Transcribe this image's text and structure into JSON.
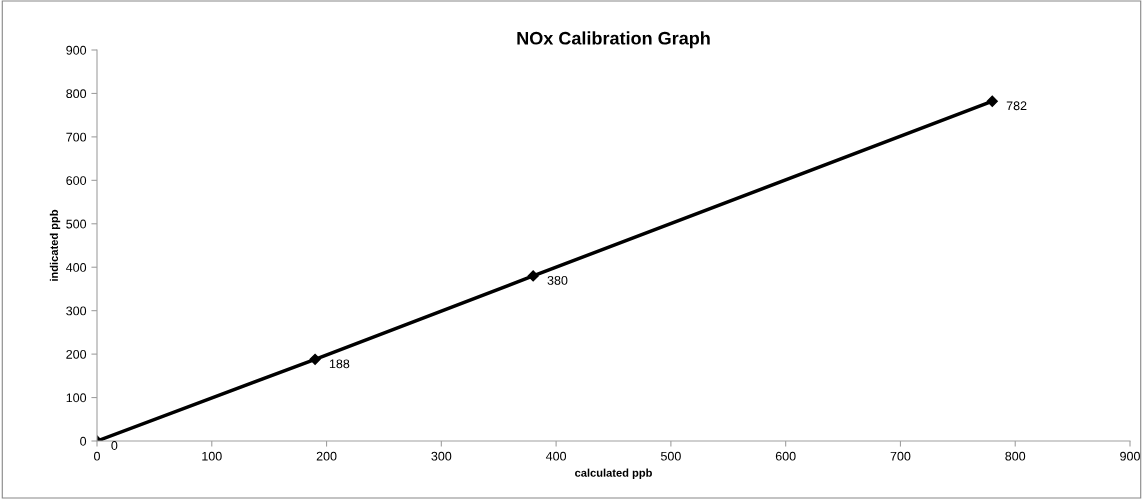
{
  "chart_data": {
    "type": "line",
    "title": "NOx Calibration Graph",
    "xlabel": "calculated ppb",
    "ylabel": "indicated ppb",
    "x": [
      0,
      190,
      380,
      780
    ],
    "series": [
      {
        "color": "#000000",
        "values": [
          0,
          188,
          380,
          782
        ]
      }
    ],
    "data_labels": true,
    "marker": "diamond",
    "line_style": "solid",
    "grid": false,
    "xlim": [
      0,
      900
    ],
    "xticks": [
      0,
      100,
      200,
      300,
      400,
      500,
      600,
      700,
      800,
      900
    ],
    "ylim": [
      0,
      900
    ],
    "yticks": [
      0,
      100,
      200,
      300,
      400,
      500,
      600,
      700,
      800,
      900
    ]
  }
}
